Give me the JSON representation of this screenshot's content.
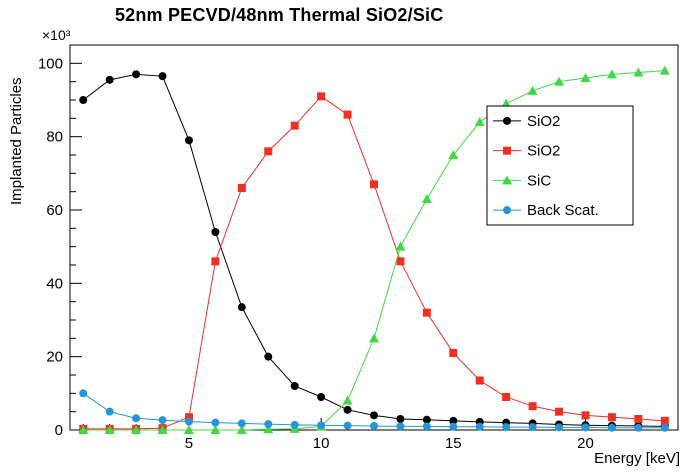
{
  "chart_data": {
    "type": "line",
    "title": "52nm PECVD/48nm Thermal SiO2/SiC",
    "xlabel": "Energy [keV]",
    "ylabel": "Implanted Particles",
    "y_axis_multiplier": "×10³",
    "xlim": [
      0.5,
      23.5
    ],
    "ylim": [
      0,
      105
    ],
    "xticks": [
      5,
      10,
      15,
      20
    ],
    "yticks": [
      0,
      20,
      40,
      60,
      80,
      100
    ],
    "grid": false,
    "legend_position": "middle-right",
    "x": [
      1,
      2,
      3,
      4,
      5,
      6,
      7,
      8,
      9,
      10,
      11,
      12,
      13,
      14,
      15,
      16,
      17,
      18,
      19,
      20,
      21,
      22,
      23
    ],
    "series": [
      {
        "name": "SiO2",
        "color": "#000000",
        "marker": "circle",
        "values": [
          90,
          95.5,
          97,
          96.5,
          79,
          54,
          33.5,
          20,
          12,
          9,
          5.5,
          4,
          3,
          2.8,
          2.5,
          2.2,
          2,
          1.8,
          1.5,
          1.3,
          1.2,
          1.1,
          1
        ]
      },
      {
        "name": "SiO2",
        "color": "#ee3123",
        "marker": "square",
        "values": [
          0.3,
          0.3,
          0.3,
          0.5,
          3.5,
          46,
          66,
          76,
          83,
          91,
          86,
          67,
          46,
          32,
          21,
          13.5,
          9,
          6.5,
          5,
          4,
          3.5,
          3,
          2.5
        ]
      },
      {
        "name": "SiC",
        "color": "#41d943",
        "marker": "triangle-up",
        "values": [
          0,
          0,
          0,
          0,
          0,
          0,
          0,
          0.2,
          0.3,
          1,
          8,
          25,
          50,
          63,
          75,
          84,
          89,
          92.5,
          95,
          96,
          97,
          97.5,
          98
        ]
      },
      {
        "name": "Back Scat.",
        "color": "#2595d8",
        "marker": "circle",
        "values": [
          10,
          5,
          3.2,
          2.7,
          2.3,
          2,
          1.8,
          1.6,
          1.4,
          1.3,
          1.2,
          1.1,
          1,
          1,
          0.9,
          0.9,
          0.8,
          0.8,
          0.7,
          0.7,
          0.6,
          0.6,
          0.6
        ]
      }
    ]
  }
}
